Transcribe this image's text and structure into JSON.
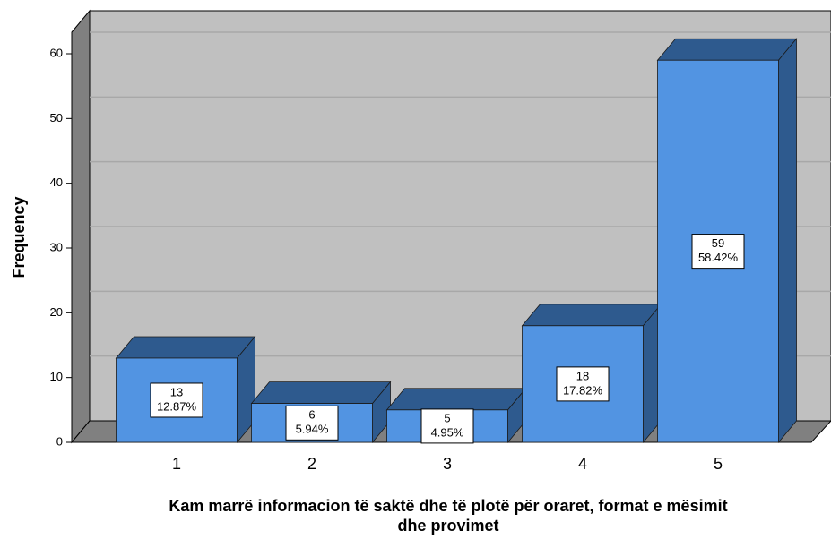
{
  "chart_data": {
    "type": "bar",
    "categories": [
      "1",
      "2",
      "3",
      "4",
      "5"
    ],
    "values": [
      13,
      6,
      5,
      18,
      59
    ],
    "percent_labels": [
      "12.87%",
      "5.94%",
      "4.95%",
      "17.82%",
      "58.42%"
    ],
    "color": "#5294e2",
    "ylim": [
      0,
      63
    ],
    "yticks": [
      0,
      10,
      20,
      30,
      40,
      50,
      60
    ],
    "grid": true,
    "ylabel": "Frequency",
    "xlabel": [
      "Kam marrë informacion të saktë dhe të plotë për oraret, format e mësimit",
      "dhe provimet"
    ]
  }
}
